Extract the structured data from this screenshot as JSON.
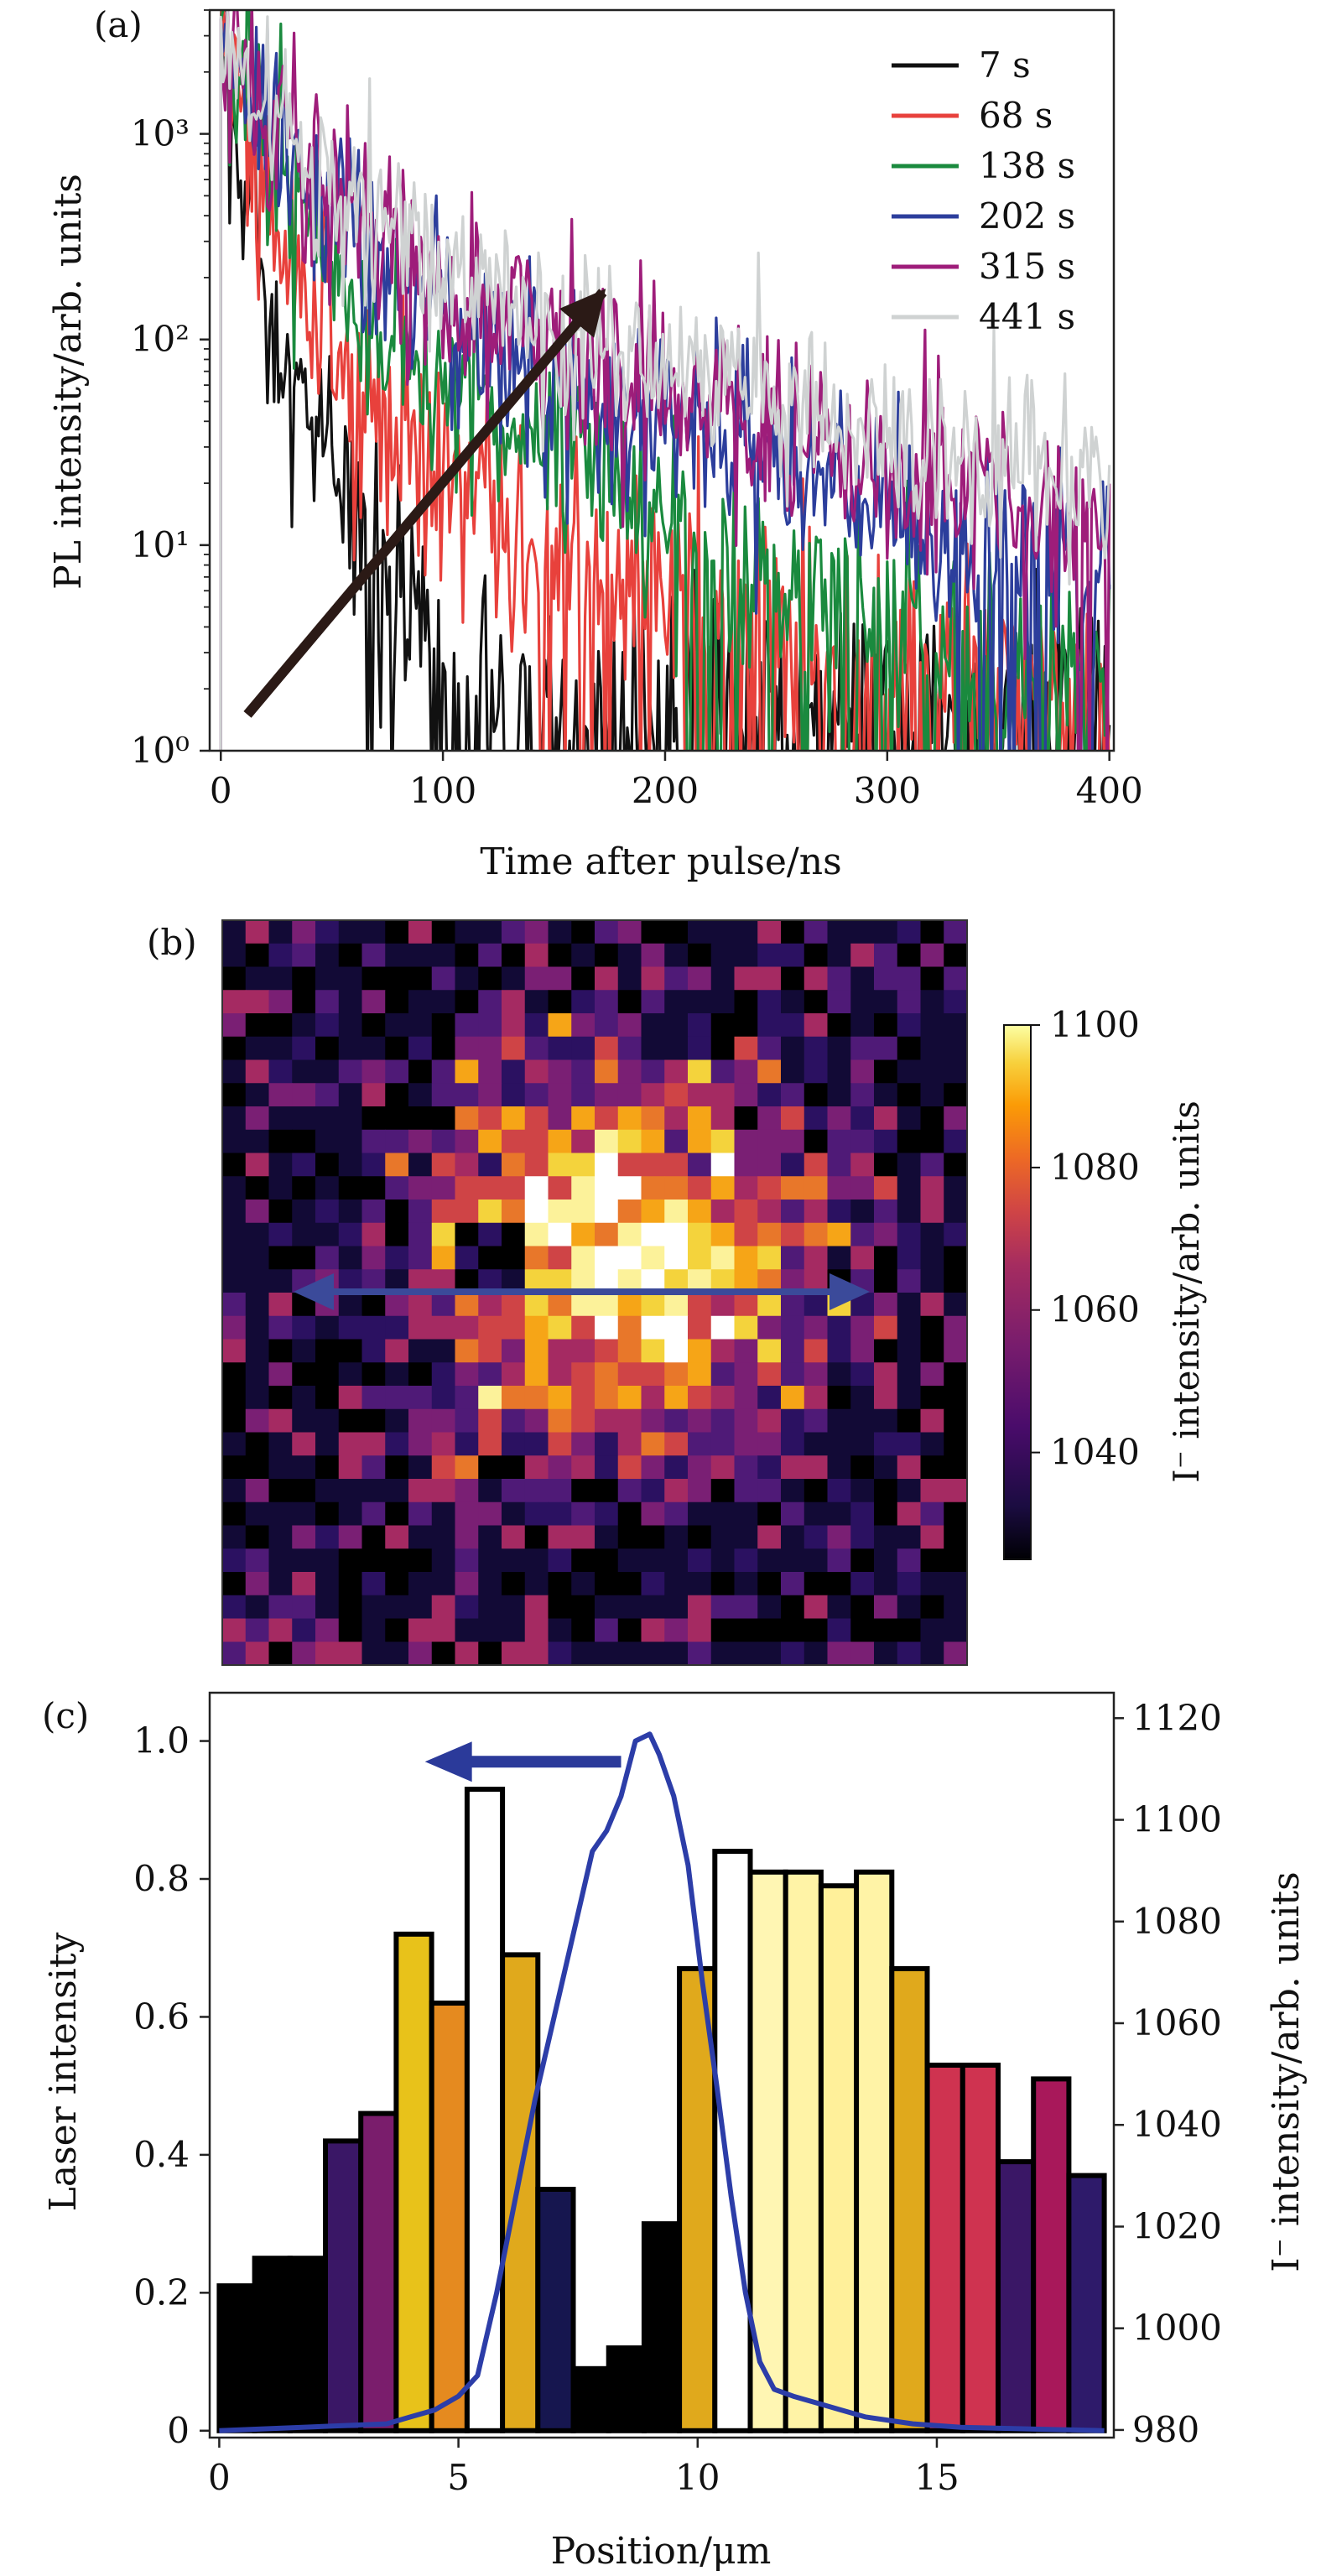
{
  "chart_data": [
    {
      "panel": "(a)",
      "type": "line",
      "xlabel": "Time after pulse/ns",
      "ylabel": "PL intensity/arb. units",
      "xlim": [
        -5,
        402
      ],
      "ylim": [
        1,
        4000
      ],
      "yscale": "log",
      "x_ticks": [
        0,
        100,
        200,
        300,
        400
      ],
      "x_tick_labels": [
        "0",
        "100",
        "200",
        "300",
        "400"
      ],
      "y_ticks": [
        1,
        10,
        100,
        1000
      ],
      "y_tick_labels": [
        "10⁰",
        "10¹",
        "10²",
        "10³"
      ],
      "legend_position": "top-right",
      "series": [
        {
          "name": "7 s",
          "color": "#111111",
          "peak": 3300,
          "tau_fast": 4,
          "amp_fast": 3000,
          "tau_slow": 18,
          "amp_slow": 300,
          "floor": 1.6,
          "noise": 0.7
        },
        {
          "name": "68 s",
          "color": "#e8413c",
          "peak": 3200,
          "tau_fast": 12,
          "amp_fast": 2300,
          "tau_slow": 70,
          "amp_slow": 80,
          "floor": 1.5,
          "noise": 0.65
        },
        {
          "name": "138 s",
          "color": "#1a8a3e",
          "peak": 3500,
          "tau_fast": 15,
          "amp_fast": 2600,
          "tau_slow": 65,
          "amp_slow": 260,
          "floor": 1.6,
          "noise": 0.6
        },
        {
          "name": "202 s",
          "color": "#2c3e9c",
          "peak": 3600,
          "tau_fast": 20,
          "amp_fast": 2600,
          "tau_slow": 95,
          "amp_slow": 320,
          "floor": 2.0,
          "noise": 0.55
        },
        {
          "name": "315 s",
          "color": "#9e1d7a",
          "peak": 3600,
          "tau_fast": 22,
          "amp_fast": 2600,
          "tau_slow": 105,
          "amp_slow": 360,
          "floor": 2.5,
          "noise": 0.55
        },
        {
          "name": "441 s",
          "color": "#cfd2d2",
          "peak": 3700,
          "tau_fast": 24,
          "amp_fast": 2600,
          "tau_slow": 115,
          "amp_slow": 420,
          "floor": 4.0,
          "noise": 0.5
        }
      ],
      "annotations": [
        {
          "type": "arrow",
          "color": "#2b1a16",
          "x0": 12,
          "y0": 1.5,
          "x1": 172,
          "y1": 170
        }
      ]
    },
    {
      "panel": "(b)",
      "type": "heatmap",
      "colorbar_label": "I⁻ intensity/arb. units",
      "colorbar_range": [
        1025,
        1100
      ],
      "colorbar_ticks": [
        1040,
        1060,
        1080,
        1100
      ],
      "colorbar_tick_labels": [
        "1040",
        "1060",
        "1080",
        "1100"
      ],
      "grid_size": [
        32,
        32
      ],
      "annotations": [
        {
          "type": "double-arrow",
          "color": "#3b4a9a"
        }
      ]
    },
    {
      "panel": "(c)",
      "type": "bar",
      "xlabel": "Position/μm",
      "ylabel": "Laser intensity",
      "y2label": "I⁻ intensity/arb. units",
      "xlim": [
        -0.2,
        18.7
      ],
      "ylim": [
        -0.01,
        1.07
      ],
      "y2lim": [
        978.5,
        1125
      ],
      "x_ticks": [
        0,
        5,
        10,
        15
      ],
      "x_tick_labels": [
        "0",
        "5",
        "10",
        "15"
      ],
      "y_ticks": [
        0,
        0.2,
        0.4,
        0.6,
        0.8,
        1.0
      ],
      "y_tick_labels": [
        "0",
        "0.2",
        "0.4",
        "0.6",
        "0.8",
        "1.0"
      ],
      "y2_ticks": [
        980,
        1000,
        1020,
        1040,
        1060,
        1080,
        1100,
        1120
      ],
      "y2_tick_labels": [
        "980",
        "1000",
        "1020",
        "1040",
        "1060",
        "1080",
        "1100",
        "1120"
      ],
      "bar_width": 0.74,
      "bars_x": [
        0.37,
        1.11,
        1.85,
        2.59,
        3.33,
        4.07,
        4.81,
        5.55,
        6.29,
        7.03,
        7.77,
        8.51,
        9.25,
        9.99,
        10.73,
        11.47,
        12.21,
        12.95,
        13.69,
        14.43,
        15.17,
        15.91,
        16.65,
        17.39,
        18.13
      ],
      "bars_value": [
        0.21,
        0.25,
        0.25,
        0.42,
        0.46,
        0.72,
        0.62,
        0.93,
        0.69,
        0.35,
        0.09,
        0.12,
        0.3,
        0.67,
        0.84,
        0.81,
        0.81,
        0.79,
        0.81,
        0.67,
        0.53,
        0.53,
        0.39,
        0.51,
        0.37
      ],
      "bars_color": [
        "#000000",
        "#000000",
        "#000000",
        "#3a1766",
        "#7a1d6c",
        "#e8c21a",
        "#e58a1f",
        "#ffffff",
        "#e0a91c",
        "#16164f",
        "#000000",
        "#000000",
        "#000000",
        "#e0a91c",
        "#ffffff",
        "#fff6b3",
        "#fff3a6",
        "#fff09a",
        "#fff3a6",
        "#e0a91c",
        "#cf3350",
        "#cf3350",
        "#3a1766",
        "#a8185a",
        "#2e1a6a"
      ],
      "laser_profile": [
        [
          0,
          0.0
        ],
        [
          3.5,
          0.01
        ],
        [
          4.0,
          0.02
        ],
        [
          4.5,
          0.03
        ],
        [
          5.0,
          0.05
        ],
        [
          5.4,
          0.08
        ],
        [
          5.8,
          0.2
        ],
        [
          6.2,
          0.34
        ],
        [
          6.6,
          0.48
        ],
        [
          7.0,
          0.6
        ],
        [
          7.4,
          0.72
        ],
        [
          7.8,
          0.84
        ],
        [
          8.1,
          0.87
        ],
        [
          8.4,
          0.92
        ],
        [
          8.7,
          1.0
        ],
        [
          9.0,
          1.01
        ],
        [
          9.2,
          0.98
        ],
        [
          9.5,
          0.92
        ],
        [
          9.8,
          0.82
        ],
        [
          10.1,
          0.65
        ],
        [
          10.4,
          0.5
        ],
        [
          10.7,
          0.34
        ],
        [
          11.0,
          0.2
        ],
        [
          11.3,
          0.1
        ],
        [
          11.6,
          0.06
        ],
        [
          12.0,
          0.05
        ],
        [
          12.5,
          0.04
        ],
        [
          13.0,
          0.03
        ],
        [
          13.5,
          0.02
        ],
        [
          14.5,
          0.01
        ],
        [
          15.5,
          0.005
        ],
        [
          18.5,
          0.0
        ]
      ],
      "annotations": [
        {
          "type": "arrow",
          "direction": "left",
          "color": "#2b3a9a",
          "x0": 8.4,
          "x1": 4.3,
          "y": 0.97
        }
      ]
    }
  ]
}
